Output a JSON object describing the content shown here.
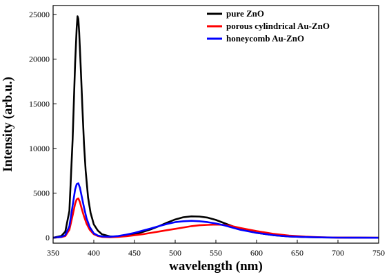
{
  "chart_data": {
    "type": "line",
    "xlabel": "wavelength (nm)",
    "ylabel": "Intensity (arb.u.)",
    "xlim": [
      350,
      750
    ],
    "ylim": [
      -600,
      26000
    ],
    "xticks": [
      350,
      400,
      450,
      500,
      550,
      600,
      650,
      700,
      750
    ],
    "yticks": [
      0,
      5000,
      10000,
      15000,
      20000,
      25000
    ],
    "grid": false,
    "legend": "top-right",
    "series": [
      {
        "name": "pure ZnO",
        "color": "#000000",
        "x": [
          350,
          360,
          365,
          370,
          374,
          377,
          379,
          380,
          381,
          382,
          384,
          386,
          388,
          390,
          393,
          396,
          400,
          405,
          410,
          420,
          430,
          440,
          450,
          460,
          470,
          480,
          490,
          500,
          510,
          520,
          530,
          540,
          550,
          560,
          570,
          580,
          590,
          600,
          620,
          640,
          660,
          680,
          700,
          725,
          750
        ],
        "y": [
          0,
          200,
          700,
          3000,
          11000,
          19500,
          23500,
          24800,
          24500,
          23000,
          19000,
          14500,
          10500,
          7500,
          4500,
          2800,
          1500,
          800,
          400,
          150,
          150,
          250,
          400,
          650,
          950,
          1300,
          1700,
          2050,
          2300,
          2400,
          2380,
          2250,
          2000,
          1650,
          1300,
          1000,
          750,
          550,
          300,
          150,
          80,
          40,
          20,
          10,
          5
        ]
      },
      {
        "name": "porous cylindrical Au-ZnO",
        "color": "#ff0000",
        "x": [
          350,
          360,
          365,
          370,
          374,
          377,
          379,
          381,
          383,
          385,
          388,
          391,
          395,
          400,
          405,
          410,
          420,
          430,
          440,
          450,
          460,
          470,
          480,
          490,
          500,
          510,
          520,
          530,
          540,
          550,
          560,
          570,
          580,
          600,
          620,
          640,
          660,
          680,
          700,
          725,
          750
        ],
        "y": [
          0,
          80,
          200,
          900,
          2500,
          3800,
          4300,
          4400,
          4000,
          3300,
          2400,
          1600,
          900,
          400,
          200,
          100,
          60,
          100,
          180,
          280,
          400,
          550,
          700,
          850,
          1000,
          1150,
          1300,
          1400,
          1450,
          1480,
          1450,
          1300,
          1100,
          750,
          450,
          250,
          130,
          60,
          30,
          15,
          5
        ]
      },
      {
        "name": "honeycomb Au-ZnO",
        "color": "#0000ff",
        "x": [
          350,
          360,
          365,
          370,
          374,
          377,
          379,
          381,
          383,
          385,
          388,
          391,
          395,
          400,
          405,
          410,
          420,
          430,
          440,
          450,
          460,
          470,
          480,
          490,
          500,
          510,
          520,
          530,
          540,
          550,
          560,
          570,
          580,
          600,
          620,
          640,
          660,
          680,
          700,
          725,
          750
        ],
        "y": [
          0,
          100,
          300,
          1300,
          3600,
          5400,
          6000,
          6100,
          5600,
          4700,
          3400,
          2200,
          1200,
          500,
          250,
          150,
          120,
          200,
          350,
          550,
          800,
          1050,
          1300,
          1550,
          1750,
          1850,
          1900,
          1850,
          1750,
          1600,
          1400,
          1150,
          900,
          550,
          300,
          150,
          80,
          40,
          20,
          10,
          5
        ]
      }
    ]
  }
}
